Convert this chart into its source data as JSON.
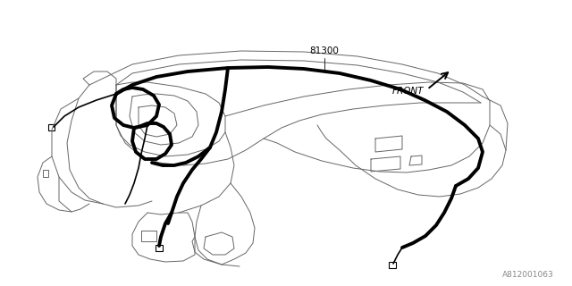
{
  "background_color": "#ffffff",
  "part_label": "81300",
  "front_label": "FRONT",
  "part_number": "A812001063",
  "diagram_color": "#000000",
  "light_line_color": "#666666",
  "lw_thin": 0.7,
  "lw_med": 1.2,
  "lw_thick": 2.8,
  "label_fontsize": 7.5,
  "pn_fontsize": 6.5
}
